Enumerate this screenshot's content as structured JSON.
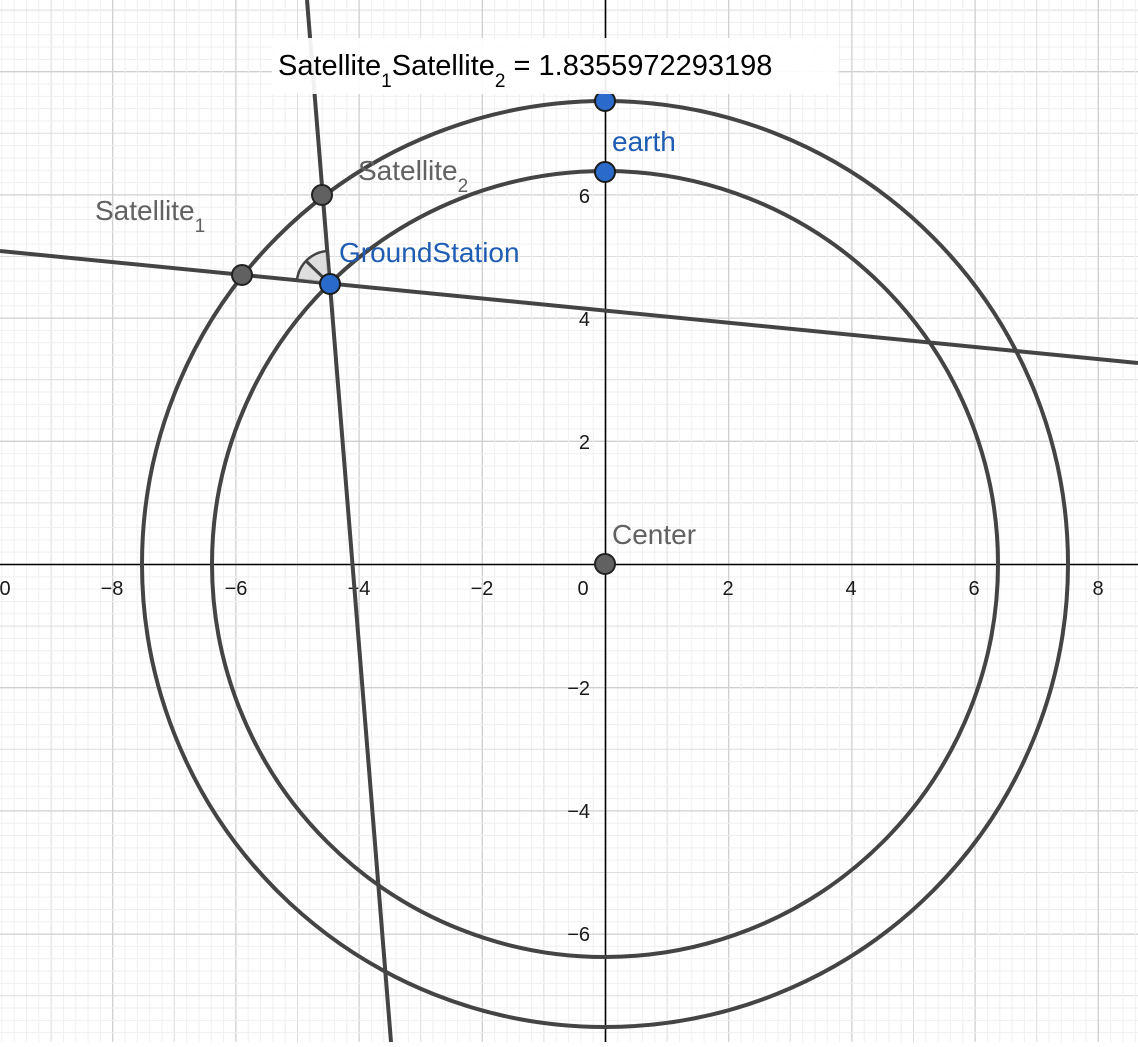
{
  "graph": {
    "x_ticks": [
      "0",
      "−8",
      "−6",
      "−4",
      "−2",
      "0",
      "2",
      "4",
      "6",
      "8"
    ],
    "y_ticks": [
      "6",
      "4",
      "2",
      "−2",
      "−4",
      "−6"
    ]
  },
  "points": {
    "center": "Center",
    "earth": "earth",
    "ground_station": "GroundStation",
    "satellite1": {
      "base": "Satellite",
      "sub": "1"
    },
    "satellite2": {
      "base": "Satellite",
      "sub": "2"
    }
  },
  "measurement": {
    "s1": "Satellite",
    "sub1": "1",
    "s2": "Satellite",
    "sub2": "2",
    "value": " = 1.8355972293198"
  },
  "colors": {
    "grid_minor": "#efefef",
    "grid_major": "#cfcfcf",
    "curve": "#444444",
    "point_blue": "#2a6acb",
    "point_grey": "#616161"
  }
}
